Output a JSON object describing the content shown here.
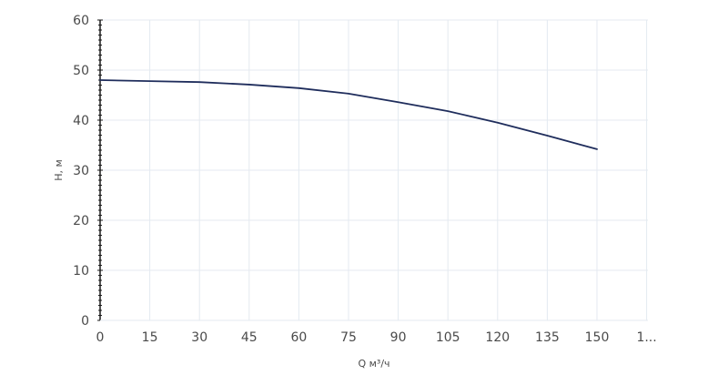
{
  "chart_data": {
    "type": "line",
    "xlabel": "Q м³/ч",
    "ylabel": "H, м",
    "x_ticks": [
      "0",
      "15",
      "30",
      "45",
      "60",
      "75",
      "90",
      "105",
      "120",
      "135",
      "150",
      "1..."
    ],
    "y_ticks": [
      "0",
      "10",
      "20",
      "30",
      "40",
      "50",
      "60"
    ],
    "xlim": [
      0,
      165
    ],
    "ylim": [
      0,
      60
    ],
    "grid": true,
    "series": [
      {
        "color": "#1f2d5c",
        "x": [
          0,
          15,
          30,
          45,
          60,
          75,
          90,
          105,
          120,
          135,
          150
        ],
        "y": [
          48.0,
          47.8,
          47.6,
          47.1,
          46.4,
          45.3,
          43.6,
          41.8,
          39.5,
          36.9,
          34.2
        ]
      }
    ],
    "colors": {
      "grid": "#e4eaf0",
      "axis": "#1a1a1a",
      "line": "#1f2d5c"
    }
  }
}
